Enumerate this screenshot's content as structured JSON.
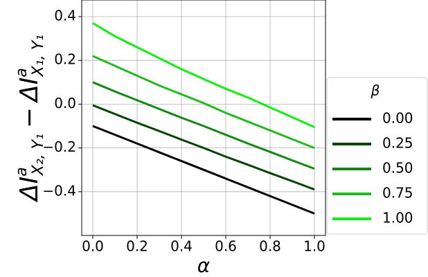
{
  "chart_data": {
    "type": "line",
    "xlabel": "α",
    "ylabel": {
      "terms": [
        {
          "base": "ΔI",
          "sup": "a",
          "sub": "X₂, Y₁"
        },
        {
          "base": "ΔI",
          "sup": "a",
          "sub": "X₁, Y₁"
        }
      ],
      "operator": "−"
    },
    "x": [
      0.0,
      0.1,
      0.2,
      0.3,
      0.4,
      0.5,
      0.6,
      0.7,
      0.8,
      0.9,
      1.0
    ],
    "series": [
      {
        "name": "0.00",
        "color": "#000000",
        "values": [
          -0.1,
          -0.14,
          -0.18,
          -0.22,
          -0.26,
          -0.3,
          -0.34,
          -0.38,
          -0.42,
          -0.46,
          -0.5
        ]
      },
      {
        "name": "0.25",
        "color": "#004400",
        "values": [
          -0.005,
          -0.045,
          -0.085,
          -0.123,
          -0.162,
          -0.2,
          -0.24,
          -0.277,
          -0.315,
          -0.352,
          -0.39
        ]
      },
      {
        "name": "0.50",
        "color": "#118811",
        "values": [
          0.1,
          0.058,
          0.018,
          -0.022,
          -0.062,
          -0.1,
          -0.14,
          -0.18,
          -0.218,
          -0.257,
          -0.295
        ]
      },
      {
        "name": "0.75",
        "color": "#22bb22",
        "values": [
          0.22,
          0.175,
          0.13,
          0.085,
          0.045,
          0.005,
          -0.04,
          -0.08,
          -0.12,
          -0.16,
          -0.2
        ]
      },
      {
        "name": "1.00",
        "color": "#11ee11",
        "values": [
          0.37,
          0.31,
          0.26,
          0.21,
          0.16,
          0.115,
          0.07,
          0.03,
          -0.015,
          -0.06,
          -0.105
        ]
      }
    ],
    "legend_title": "β",
    "legend": "right",
    "xlim": [
      -0.05,
      1.05
    ],
    "ylim": [
      -0.6,
      0.476
    ],
    "xticks": [
      {
        "value": 0,
        "label": "0.0"
      },
      0.2,
      0.4,
      0.6,
      0.8,
      {
        "value": 1,
        "label": "1.0"
      }
    ],
    "yticks": [
      {
        "value": -0.4,
        "label": "−0.4"
      },
      {
        "value": -0.2,
        "label": "−0.2"
      },
      {
        "value": 0,
        "label": "0.0"
      },
      0.2,
      0.4
    ],
    "grid": true
  }
}
